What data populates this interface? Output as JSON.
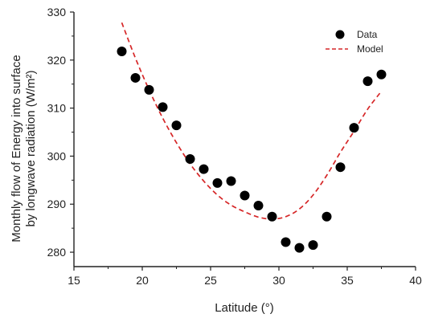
{
  "chart_data": {
    "type": "scatter",
    "xlabel": "Latitude (°)",
    "ylabel_lines": [
      "Monthly flow of Energy into surface",
      "by longwave radiation (W/m²)"
    ],
    "xlim": [
      15,
      40
    ],
    "ylim": [
      277,
      330
    ],
    "xticks": [
      "15",
      "20",
      "25",
      "30",
      "35",
      "40"
    ],
    "yticks": [
      "280",
      "290",
      "300",
      "310",
      "320",
      "330"
    ],
    "grid": false,
    "legend_position": "top-right",
    "series": [
      {
        "name": "Data",
        "kind": "points",
        "color": "#000000",
        "x": [
          18.5,
          19.5,
          20.5,
          21.5,
          22.5,
          23.5,
          24.5,
          25.5,
          26.5,
          27.5,
          28.5,
          29.5,
          30.5,
          31.5,
          32.5,
          33.5,
          34.5,
          35.5,
          36.5,
          37.5
        ],
        "y": [
          321.8,
          316.3,
          313.8,
          310.2,
          306.4,
          299.4,
          297.3,
          294.4,
          294.8,
          291.8,
          289.7,
          287.4,
          282.1,
          280.9,
          281.5,
          287.4,
          297.7,
          305.9,
          315.6,
          317.0
        ]
      },
      {
        "name": "Model",
        "kind": "line",
        "color": "#d62728",
        "x": [
          18.5,
          19.5,
          20.5,
          21.5,
          22.5,
          23.5,
          24.5,
          25.5,
          26.5,
          27.5,
          28.5,
          29.5,
          30.5,
          31.5,
          32.5,
          33.5,
          34.5,
          35.5,
          36.5,
          37.5
        ],
        "y": [
          327.8,
          320.4,
          313.8,
          307.9,
          302.8,
          298.4,
          294.8,
          291.9,
          289.8,
          288.4,
          287.3,
          286.9,
          287.4,
          289.0,
          291.9,
          296.0,
          300.8,
          305.2,
          309.8,
          313.5
        ]
      }
    ]
  }
}
